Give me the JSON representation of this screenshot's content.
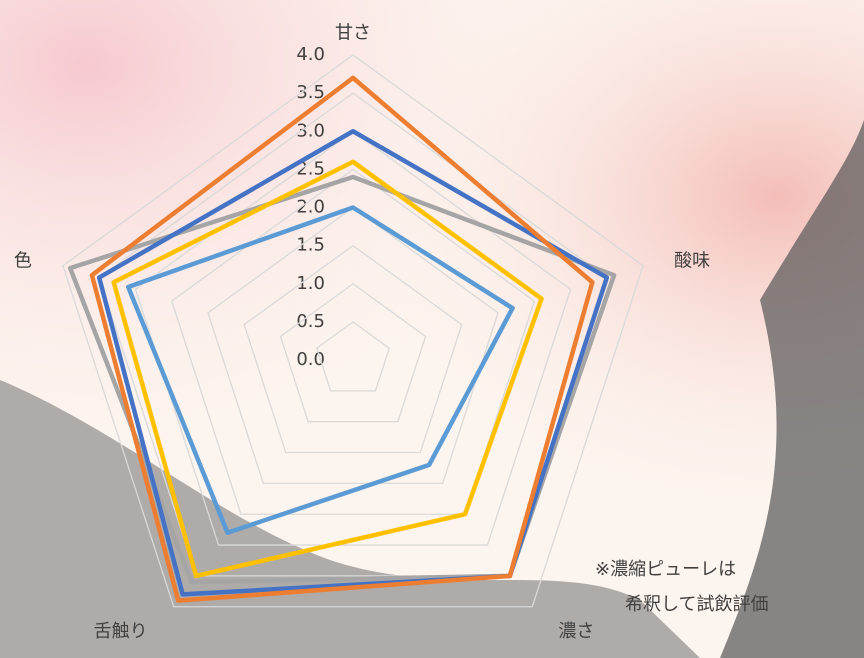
{
  "chart_data": {
    "type": "radar",
    "categories": [
      "甘さ",
      "酸味",
      "濃さ",
      "舌触り",
      "色"
    ],
    "series": [
      {
        "color": "#a5a5a5",
        "values": [
          2.4,
          3.6,
          3.5,
          3.6,
          3.9
        ]
      },
      {
        "color": "#5b9bd5",
        "values": [
          2.0,
          2.2,
          1.7,
          2.8,
          3.1
        ]
      },
      {
        "color": "#ffc000",
        "values": [
          2.6,
          2.6,
          2.5,
          3.5,
          3.3
        ]
      },
      {
        "color": "#4472c4",
        "values": [
          3.0,
          3.5,
          3.5,
          3.8,
          3.5
        ]
      },
      {
        "color": "#ed7d31",
        "values": [
          3.7,
          3.3,
          3.5,
          3.9,
          3.6
        ]
      }
    ],
    "rlim": [
      0,
      4
    ],
    "rticks": [
      {
        "value": 0,
        "label": "0.0"
      },
      {
        "value": 0.5,
        "label": "0.5"
      },
      {
        "value": 1,
        "label": "1.0"
      },
      {
        "value": 1.5,
        "label": "1.5"
      },
      {
        "value": 2,
        "label": "2.0"
      },
      {
        "value": 2.5,
        "label": "2.5"
      },
      {
        "value": 3,
        "label": "3.0"
      },
      {
        "value": 3.5,
        "label": "3.5"
      },
      {
        "value": 4,
        "label": "4.0"
      }
    ],
    "grid": true,
    "annotation": [
      "※濃縮ピューレは",
      "希釈して試飲評価"
    ]
  }
}
